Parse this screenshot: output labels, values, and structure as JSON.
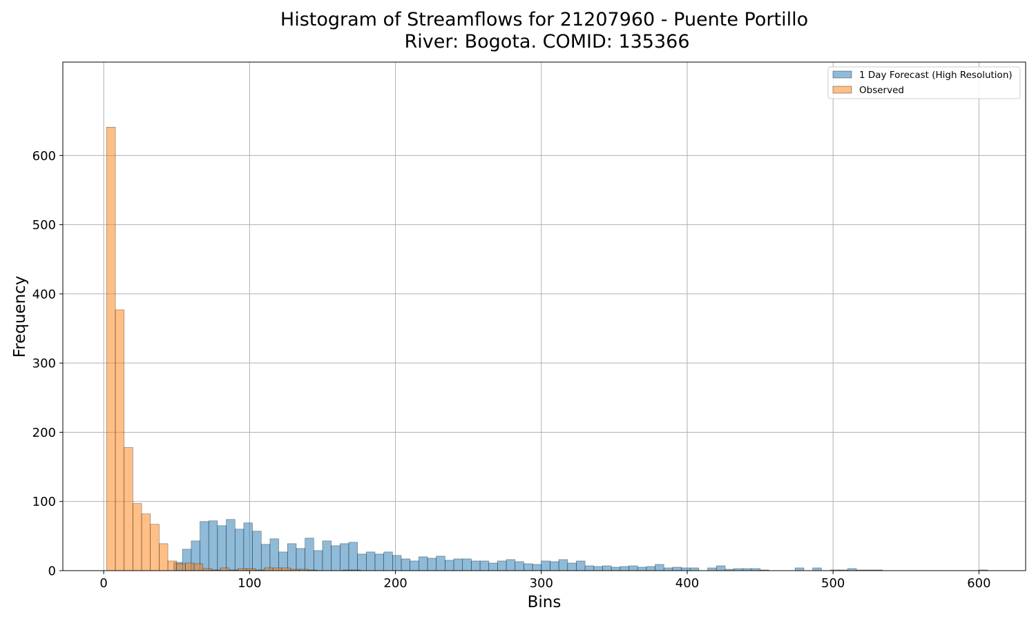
{
  "chart_data": {
    "type": "bar",
    "title_line1": "Histogram of Streamflows for 21207960 - Puente Portillo",
    "title_line2": "River: Bogota. COMID: 135366",
    "xlabel": "Bins",
    "ylabel": "Frequency",
    "xlim": [
      -28,
      632
    ],
    "ylim": [
      0,
      735
    ],
    "xticks": [
      0,
      100,
      200,
      300,
      400,
      500,
      600
    ],
    "yticks": [
      0,
      100,
      200,
      300,
      400,
      500,
      600
    ],
    "grid": true,
    "legend_position": "top-right",
    "bin_width": 6,
    "series": [
      {
        "name": "1 Day Forecast (High Resolution)",
        "color": "#1f77b4",
        "bin_starts": [
          48,
          54,
          60,
          66,
          72,
          78,
          84,
          90,
          96,
          102,
          108,
          114,
          120,
          126,
          132,
          138,
          144,
          150,
          156,
          162,
          168,
          174,
          180,
          186,
          192,
          198,
          204,
          210,
          216,
          222,
          228,
          234,
          240,
          246,
          252,
          258,
          264,
          270,
          276,
          282,
          288,
          294,
          300,
          306,
          312,
          318,
          324,
          330,
          336,
          342,
          348,
          354,
          360,
          366,
          372,
          378,
          384,
          390,
          396,
          402,
          414,
          420,
          426,
          432,
          438,
          444,
          450,
          474,
          486,
          498,
          504,
          510,
          516,
          522,
          528,
          600
        ],
        "values": [
          12,
          31,
          43,
          71,
          72,
          65,
          74,
          60,
          69,
          57,
          38,
          46,
          27,
          39,
          32,
          47,
          29,
          43,
          36,
          39,
          41,
          24,
          27,
          24,
          27,
          22,
          17,
          14,
          20,
          18,
          21,
          15,
          17,
          17,
          14,
          14,
          11,
          14,
          16,
          13,
          10,
          9,
          14,
          13,
          16,
          11,
          14,
          7,
          6,
          7,
          5,
          6,
          7,
          5,
          6,
          9,
          4,
          5,
          4,
          4,
          4,
          7,
          2,
          3,
          3,
          3,
          1,
          4,
          4,
          1,
          1,
          3,
          1,
          1,
          1,
          1
        ]
      },
      {
        "name": "Observed",
        "color": "#ff7f0e",
        "bin_starts": [
          2,
          8,
          14,
          20,
          26,
          32,
          38,
          44,
          50,
          56,
          62,
          68,
          74,
          80,
          86,
          92,
          98,
          104,
          110,
          116,
          122,
          128,
          134,
          140,
          164,
          170
        ],
        "values": [
          641,
          377,
          178,
          97,
          82,
          67,
          39,
          14,
          10,
          11,
          10,
          3,
          1,
          4,
          1,
          3,
          3,
          1,
          4,
          4,
          4,
          2,
          2,
          1,
          1,
          1
        ]
      }
    ]
  }
}
